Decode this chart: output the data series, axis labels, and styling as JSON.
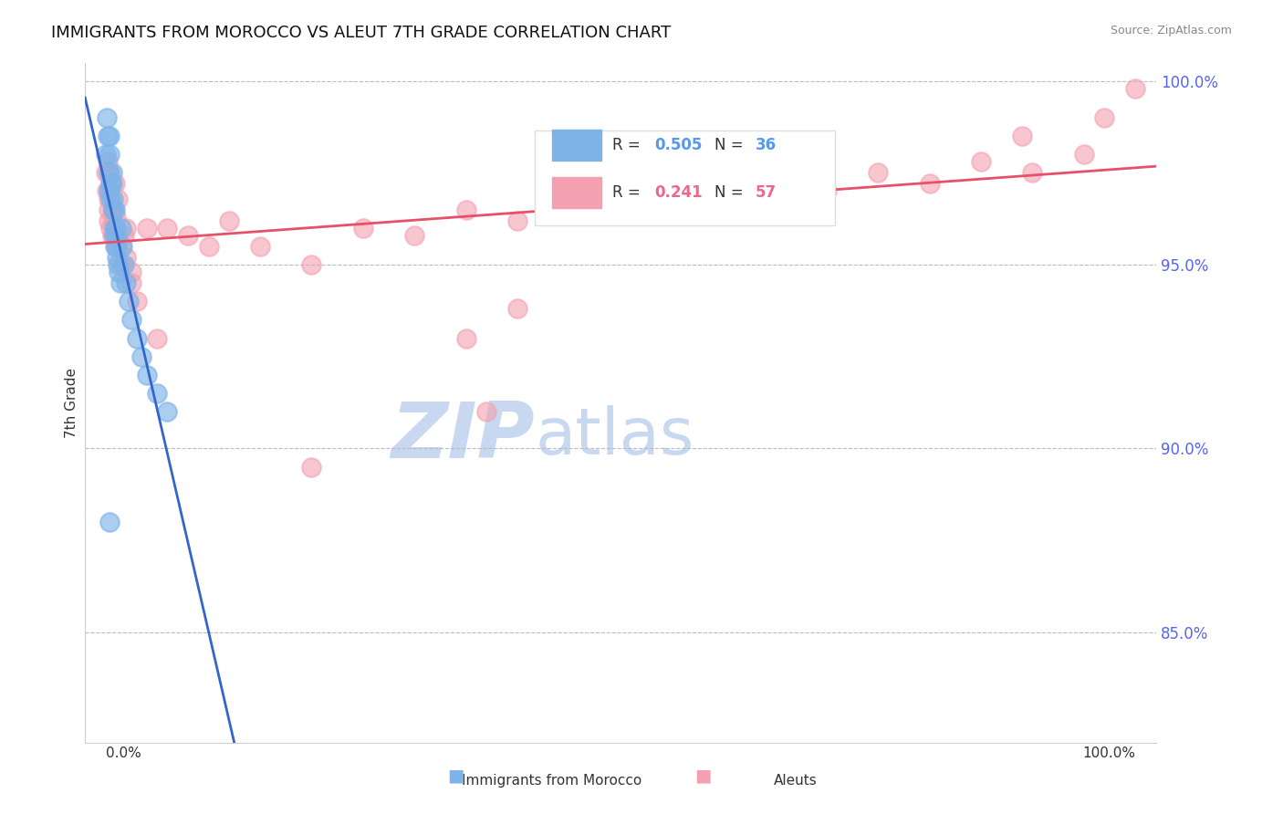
{
  "title": "IMMIGRANTS FROM MOROCCO VS ALEUT 7TH GRADE CORRELATION CHART",
  "source_text": "Source: ZipAtlas.com",
  "ylabel": "7th Grade",
  "right_yticks": [
    85.0,
    90.0,
    95.0,
    100.0
  ],
  "series_blue": {
    "name": "Immigrants from Morocco",
    "R": 0.505,
    "N": 36,
    "color": "#7EB3E8",
    "line_color": "#3366CC",
    "x": [
      0.0,
      0.001,
      0.002,
      0.003,
      0.003,
      0.004,
      0.004,
      0.005,
      0.005,
      0.006,
      0.006,
      0.007,
      0.007,
      0.008,
      0.008,
      0.009,
      0.009,
      0.01,
      0.01,
      0.011,
      0.011,
      0.012,
      0.013,
      0.014,
      0.015,
      0.016,
      0.018,
      0.02,
      0.022,
      0.025,
      0.03,
      0.035,
      0.04,
      0.05,
      0.06,
      0.004
    ],
    "y": [
      0.98,
      0.99,
      0.985,
      0.975,
      0.97,
      0.98,
      0.985,
      0.972,
      0.968,
      0.975,
      0.972,
      0.968,
      0.965,
      0.96,
      0.958,
      0.955,
      0.965,
      0.96,
      0.958,
      0.955,
      0.952,
      0.95,
      0.948,
      0.945,
      0.96,
      0.955,
      0.95,
      0.945,
      0.94,
      0.935,
      0.93,
      0.925,
      0.92,
      0.915,
      0.91,
      0.88
    ]
  },
  "series_pink": {
    "name": "Aleuts",
    "R": 0.241,
    "N": 57,
    "color": "#F4A0B0",
    "line_color": "#E8506A",
    "x": [
      0.0,
      0.001,
      0.002,
      0.003,
      0.003,
      0.004,
      0.005,
      0.005,
      0.006,
      0.007,
      0.008,
      0.009,
      0.01,
      0.012,
      0.015,
      0.018,
      0.02,
      0.025,
      0.03,
      0.04,
      0.05,
      0.06,
      0.08,
      0.1,
      0.12,
      0.15,
      0.2,
      0.25,
      0.3,
      0.35,
      0.4,
      0.45,
      0.5,
      0.55,
      0.6,
      0.65,
      0.7,
      0.75,
      0.8,
      0.85,
      0.9,
      0.95,
      1.0,
      0.003,
      0.004,
      0.006,
      0.008,
      0.01,
      0.015,
      0.02,
      0.025,
      0.2,
      0.35,
      0.4,
      0.89,
      0.37,
      0.97
    ],
    "y": [
      0.975,
      0.97,
      0.978,
      0.968,
      0.965,
      0.975,
      0.972,
      0.96,
      0.965,
      0.962,
      0.958,
      0.972,
      0.955,
      0.968,
      0.95,
      0.958,
      0.96,
      0.945,
      0.94,
      0.96,
      0.93,
      0.96,
      0.958,
      0.955,
      0.962,
      0.955,
      0.95,
      0.96,
      0.958,
      0.965,
      0.962,
      0.968,
      0.965,
      0.97,
      0.968,
      0.972,
      0.97,
      0.975,
      0.972,
      0.978,
      0.975,
      0.98,
      0.998,
      0.962,
      0.97,
      0.958,
      0.965,
      0.963,
      0.955,
      0.952,
      0.948,
      0.895,
      0.93,
      0.938,
      0.985,
      0.91,
      0.99
    ]
  },
  "ylim": [
    0.82,
    1.005
  ],
  "xlim": [
    -0.02,
    1.02
  ],
  "background_color": "#FFFFFF",
  "grid_color": "#BBBBBB",
  "watermark_zip": "ZIP",
  "watermark_atlas": "atlas",
  "watermark_color_zip": "#C8D8F0",
  "watermark_color_atlas": "#C8D8F0",
  "title_fontsize": 13,
  "axis_label_color": "#333333",
  "tick_color_right": "#5566EE",
  "legend_R_color_blue": "#5599EE",
  "legend_R_color_pink": "#EE6688"
}
